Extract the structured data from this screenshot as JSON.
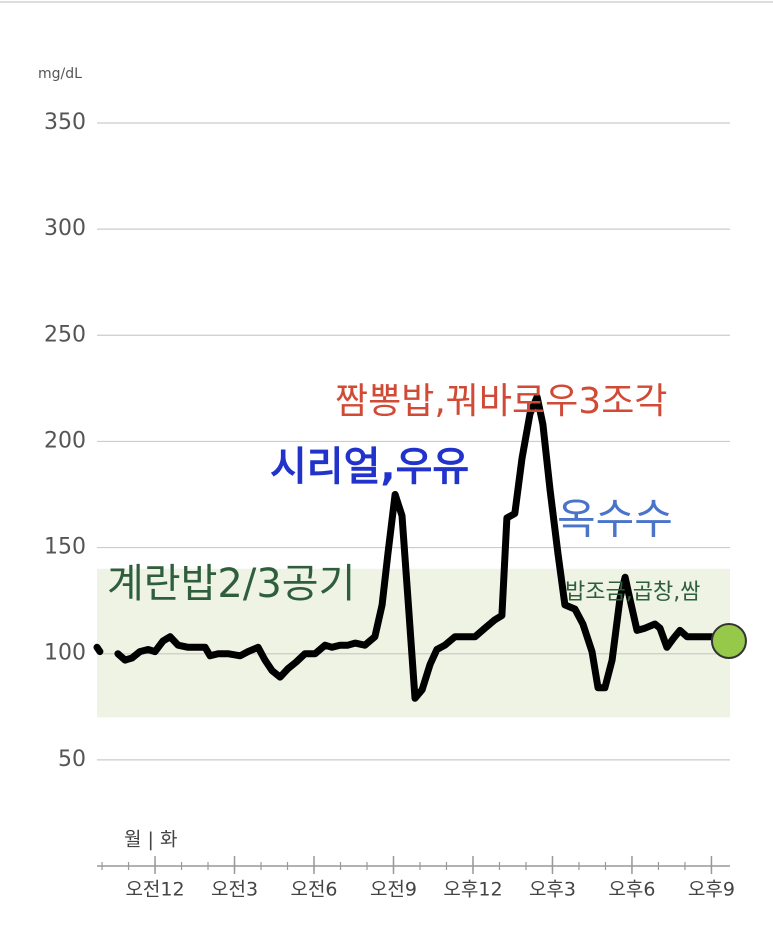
{
  "chart_data": {
    "type": "line",
    "unit_label": "mg/dL",
    "day_label": "월 | 화",
    "ylim": [
      0,
      350
    ],
    "yticks": [
      50,
      100,
      150,
      200,
      250,
      300,
      350
    ],
    "xlim": [
      -2.19,
      21.7
    ],
    "xticks": [
      {
        "value": 0,
        "label": "오전12"
      },
      {
        "value": 3,
        "label": "오전3"
      },
      {
        "value": 6,
        "label": "오전6"
      },
      {
        "value": 9,
        "label": "오전9"
      },
      {
        "value": 12,
        "label": "오후12"
      },
      {
        "value": 15,
        "label": "오후3"
      },
      {
        "value": 18,
        "label": "오후6"
      },
      {
        "value": 21,
        "label": "오후9"
      }
    ],
    "grid": true,
    "target_range": [
      70,
      140
    ],
    "target_color": "#eef3e3",
    "series": [
      {
        "color": "#000000",
        "x": [
          -2.19,
          -2.08,
          -1.7,
          -1.4,
          -1.13,
          -0.87,
          -0.57,
          -0.26,
          0,
          0.3,
          0.57,
          0.87,
          1.25,
          1.62,
          1.89,
          2.08,
          2.38,
          2.75,
          3.21,
          3.51,
          3.89,
          4.15,
          4.42,
          4.72,
          5.02,
          5.32,
          5.66,
          6.04,
          6.42,
          6.68,
          6.98,
          7.28,
          7.55,
          7.92,
          8.3,
          8.57,
          8.79,
          9.06,
          9.32,
          9.55,
          9.81,
          10.08,
          10.38,
          10.64,
          10.94,
          11.32,
          11.7,
          12.08,
          12.45,
          12.83,
          13.09,
          13.28,
          13.58,
          13.85,
          14.15,
          14.42,
          14.64,
          14.91,
          15.21,
          15.47,
          15.85,
          16.15,
          16.49,
          16.72,
          16.98,
          17.25,
          17.55,
          17.74,
          17.92,
          18.19,
          18.49,
          18.87,
          19.06,
          19.32,
          19.55,
          19.81,
          20.08,
          20.38,
          20.64,
          21.02
        ],
        "values": [
          103,
          101,
          null,
          100,
          97,
          98,
          101,
          102,
          101,
          106,
          108,
          104,
          103,
          103,
          103,
          99,
          100,
          100,
          99,
          101,
          103,
          97,
          92,
          89,
          93,
          96,
          100,
          100,
          104,
          103,
          104,
          104,
          105,
          104,
          108,
          123,
          147,
          175,
          165,
          125,
          79,
          83,
          95,
          102,
          104,
          108,
          108,
          108,
          112,
          116,
          118,
          164,
          166,
          192,
          213,
          221,
          208,
          177,
          147,
          123,
          121,
          114,
          101,
          84,
          84,
          97,
          126,
          136,
          126,
          111,
          112,
          114,
          112,
          103,
          107,
          111,
          108,
          108,
          108,
          108
        ]
      }
    ],
    "current": {
      "x": 21.66,
      "value": 106,
      "color": "#96c84a"
    },
    "annotations": [
      {
        "text": "계란밥2/3공기",
        "color": "#2f5e3d"
      },
      {
        "text": "시리얼,우유",
        "color": "#2233cc"
      },
      {
        "text": "짬뽕밥,꿔바로우3조각",
        "color": "#d04a35"
      },
      {
        "text": "옥수수",
        "color": "#4a74c9"
      },
      {
        "text": "밥조금,곱창,쌈",
        "color": "#2f5e3d"
      }
    ]
  }
}
